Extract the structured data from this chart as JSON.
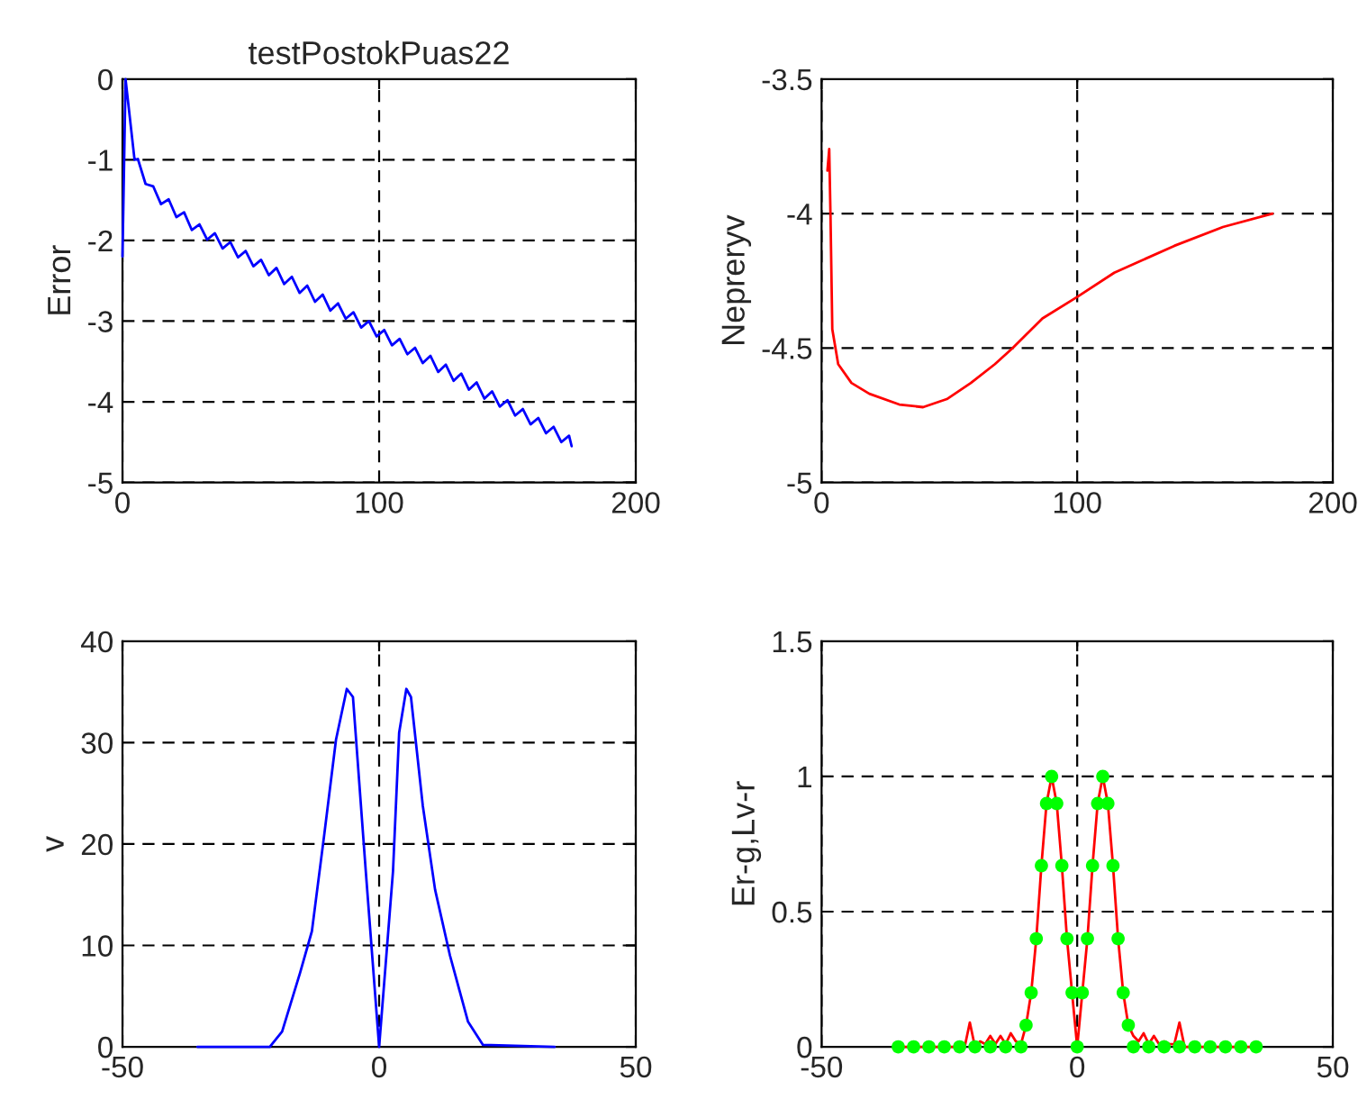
{
  "chart_data": [
    {
      "type": "line",
      "title": "testPostokPuas22",
      "ylabel": "Error",
      "xlim": [
        0,
        200
      ],
      "ylim": [
        -5,
        0
      ],
      "xticks": [
        0,
        100,
        200
      ],
      "yticks": [
        -5,
        -4,
        -3,
        -2,
        -1,
        0
      ],
      "grid": true,
      "line_style": "solid",
      "series": [
        {
          "color": "#0000ff",
          "x": [
            0,
            1.2,
            4.7,
            6,
            9,
            12,
            15,
            18,
            21,
            24,
            27,
            30,
            33,
            36,
            39,
            42,
            45,
            48,
            51,
            54,
            57,
            60,
            63,
            66,
            69,
            72,
            75,
            78,
            81,
            84,
            87,
            90,
            93,
            96,
            99,
            102,
            105,
            108,
            111,
            114,
            117,
            120,
            123,
            126,
            129,
            132,
            135,
            138,
            141,
            144,
            147,
            150,
            153,
            156,
            159,
            162,
            165,
            168,
            171,
            174,
            175
          ],
          "values": [
            -2.2,
            0,
            -1.0,
            -0.99,
            -1.3,
            -1.33,
            -1.55,
            -1.49,
            -1.71,
            -1.65,
            -1.87,
            -1.8,
            -1.99,
            -1.91,
            -2.1,
            -2.02,
            -2.21,
            -2.13,
            -2.32,
            -2.24,
            -2.43,
            -2.34,
            -2.54,
            -2.45,
            -2.65,
            -2.56,
            -2.76,
            -2.67,
            -2.87,
            -2.78,
            -2.97,
            -2.89,
            -3.08,
            -3.0,
            -3.19,
            -3.11,
            -3.3,
            -3.22,
            -3.41,
            -3.33,
            -3.52,
            -3.43,
            -3.63,
            -3.54,
            -3.74,
            -3.65,
            -3.85,
            -3.76,
            -3.96,
            -3.87,
            -4.06,
            -3.98,
            -4.17,
            -4.09,
            -4.28,
            -4.2,
            -4.39,
            -4.31,
            -4.5,
            -4.42,
            -4.55
          ]
        }
      ]
    },
    {
      "type": "line",
      "ylabel": "Nepreryv",
      "xlim": [
        0,
        200
      ],
      "ylim": [
        -5,
        -3.5
      ],
      "xticks": [
        0,
        100,
        200
      ],
      "yticks": [
        -5,
        -4.5,
        -4,
        -3.5
      ],
      "grid": true,
      "line_style": "solid",
      "series": [
        {
          "color": "#ff0000",
          "x": [
            2.3,
            3,
            3.5,
            4.2,
            6.5,
            11.7,
            18.7,
            30.4,
            39.7,
            49,
            58.4,
            67.8,
            74.8,
            86.4,
            100,
            114.5,
            138,
            157,
            176.4
          ],
          "values": [
            -3.84,
            -3.76,
            -4.01,
            -4.43,
            -4.56,
            -4.63,
            -4.67,
            -4.71,
            -4.72,
            -4.69,
            -4.63,
            -4.56,
            -4.5,
            -4.39,
            -4.31,
            -4.22,
            -4.12,
            -4.05,
            -4.0
          ]
        }
      ]
    },
    {
      "type": "line",
      "ylabel": "v",
      "xlim": [
        -50,
        50
      ],
      "ylim": [
        0,
        40
      ],
      "xticks": [
        -50,
        0,
        50
      ],
      "yticks": [
        0,
        10,
        20,
        30,
        40
      ],
      "grid": true,
      "line_style": "solid",
      "series": [
        {
          "color": "#0000ff",
          "x": [
            -35.4,
            -21.3,
            -18.9,
            -15.4,
            -13.1,
            -10.7,
            -8.4,
            -6.3,
            -5.1,
            -2.6,
            0,
            2.7,
            3.9,
            5.3,
            6.2,
            8.5,
            10.9,
            13.8,
            17.3,
            20.2,
            34.2
          ],
          "values": [
            0,
            0,
            1.5,
            7.3,
            11.4,
            20.9,
            30.3,
            35.3,
            34.5,
            17.3,
            0,
            17.3,
            31,
            35.3,
            34.5,
            23.8,
            15.5,
            9,
            2.5,
            0.2,
            0
          ]
        }
      ]
    },
    {
      "type": "line",
      "ylabel": "Er-g,Lv-r",
      "xlim": [
        -50,
        50
      ],
      "ylim": [
        0,
        1.5
      ],
      "xticks": [
        -50,
        0,
        50
      ],
      "yticks": [
        0,
        0.5,
        1,
        1.5
      ],
      "grid": true,
      "series": [
        {
          "type": "line",
          "color": "#ff0000",
          "line_style": "solid",
          "marker": "none",
          "x": [
            -35,
            -22,
            -21,
            -20,
            -19,
            -18,
            -17,
            -16,
            -15,
            -14,
            -13,
            -12,
            -11,
            -10,
            -9,
            -8,
            -7,
            -6,
            -5,
            -4,
            -3,
            -2,
            -1,
            0,
            1,
            2,
            3,
            4,
            5,
            6,
            7,
            8,
            9,
            10,
            11,
            12,
            13,
            14,
            15,
            16,
            17,
            18,
            19,
            20,
            21,
            35
          ],
          "values": [
            0,
            0,
            0.09,
            0,
            0.02,
            0.01,
            0.04,
            0.01,
            0.04,
            0.01,
            0.05,
            0.02,
            0.01,
            0.08,
            0.2,
            0.4,
            0.67,
            0.9,
            1.0,
            0.9,
            0.67,
            0.4,
            0.2,
            0,
            0.2,
            0.4,
            0.67,
            0.9,
            1.0,
            0.9,
            0.67,
            0.4,
            0.2,
            0.08,
            0.04,
            0.02,
            0.05,
            0.01,
            0.04,
            0.01,
            0.02,
            0.01,
            0.01,
            0.09,
            0,
            0
          ]
        },
        {
          "type": "scatter",
          "color": "#00ff00",
          "marker": "circle",
          "x": [
            -35,
            -32,
            -29,
            -26,
            -23,
            -20,
            -17,
            -14,
            -11,
            -10,
            -9,
            -8,
            -7,
            -6,
            -5,
            -4,
            -3,
            -2,
            -1,
            0,
            1,
            2,
            3,
            4,
            5,
            6,
            7,
            8,
            9,
            10,
            11,
            14,
            17,
            20,
            23,
            26,
            29,
            32,
            35
          ],
          "values": [
            0,
            0,
            0,
            0,
            0,
            0,
            0,
            0,
            0,
            0.08,
            0.2,
            0.4,
            0.67,
            0.9,
            1.0,
            0.9,
            0.67,
            0.4,
            0.2,
            0,
            0.2,
            0.4,
            0.67,
            0.9,
            1.0,
            0.9,
            0.67,
            0.4,
            0.2,
            0.08,
            0,
            0,
            0,
            0,
            0,
            0,
            0,
            0,
            0
          ]
        }
      ]
    }
  ]
}
